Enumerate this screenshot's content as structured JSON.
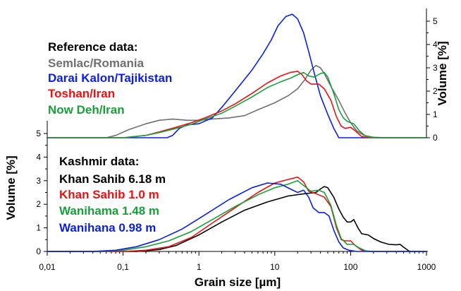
{
  "chart_data": [
    {
      "type": "line",
      "panel": "top",
      "ylabel": "Volume [%]",
      "y_axis_side": "right",
      "ylim": [
        0,
        5
      ],
      "yticks": [
        "0",
        "1",
        "2",
        "3",
        "4",
        "5"
      ],
      "x_scale": "log",
      "xlim": [
        0.01,
        1000
      ],
      "legend": {
        "title": "Reference data:",
        "placement": "top-left",
        "entries": [
          "Semlac/Romania",
          "Darai Kalon/Tajikistan",
          "Toshan/Iran",
          "Now Deh/Iran"
        ]
      },
      "series": [
        {
          "name": "Semlac/Romania",
          "color": "#707070",
          "points": [
            [
              0.06,
              0
            ],
            [
              0.08,
              0.1
            ],
            [
              0.12,
              0.35
            ],
            [
              0.2,
              0.6
            ],
            [
              0.3,
              0.75
            ],
            [
              0.45,
              0.8
            ],
            [
              0.7,
              0.75
            ],
            [
              1.0,
              0.75
            ],
            [
              1.5,
              0.8
            ],
            [
              2.5,
              0.85
            ],
            [
              4,
              0.95
            ],
            [
              6,
              1.2
            ],
            [
              10,
              1.5
            ],
            [
              15,
              1.8
            ],
            [
              20,
              2.1
            ],
            [
              25,
              2.5
            ],
            [
              30,
              2.9
            ],
            [
              35,
              3.1
            ],
            [
              40,
              3.0
            ],
            [
              45,
              2.75
            ],
            [
              55,
              2.2
            ],
            [
              70,
              1.6
            ],
            [
              85,
              1.05
            ],
            [
              100,
              0.65
            ],
            [
              120,
              0.3
            ],
            [
              150,
              0.1
            ],
            [
              200,
              0.02
            ],
            [
              300,
              0
            ]
          ]
        },
        {
          "name": "Darai Kalon/Tajikistan",
          "color": "#0a1ee6",
          "points": [
            [
              0.38,
              0
            ],
            [
              0.45,
              0.1
            ],
            [
              0.55,
              0.4
            ],
            [
              0.7,
              0.55
            ],
            [
              1.0,
              0.6
            ],
            [
              1.5,
              0.85
            ],
            [
              2,
              1.3
            ],
            [
              3,
              2.0
            ],
            [
              5,
              2.9
            ],
            [
              7,
              3.6
            ],
            [
              9,
              4.2
            ],
            [
              11,
              4.8
            ],
            [
              14,
              5.2
            ],
            [
              17,
              5.3
            ],
            [
              20,
              5.1
            ],
            [
              24,
              4.5
            ],
            [
              28,
              3.7
            ],
            [
              33,
              2.8
            ],
            [
              40,
              1.8
            ],
            [
              50,
              1.0
            ],
            [
              60,
              0.4
            ],
            [
              70,
              0
            ]
          ]
        },
        {
          "name": "Toshan/Iran",
          "color": "#ee1010",
          "points": [
            [
              0.1,
              0
            ],
            [
              0.2,
              0.1
            ],
            [
              0.3,
              0.25
            ],
            [
              0.5,
              0.45
            ],
            [
              0.8,
              0.65
            ],
            [
              1.2,
              0.85
            ],
            [
              2,
              1.15
            ],
            [
              3,
              1.45
            ],
            [
              5,
              1.9
            ],
            [
              8,
              2.35
            ],
            [
              12,
              2.65
            ],
            [
              16,
              2.8
            ],
            [
              20,
              2.85
            ],
            [
              23,
              2.7
            ],
            [
              26,
              2.45
            ],
            [
              30,
              2.3
            ],
            [
              38,
              2.3
            ],
            [
              45,
              2.1
            ],
            [
              55,
              1.6
            ],
            [
              65,
              0.9
            ],
            [
              75,
              0.5
            ],
            [
              85,
              0.4
            ],
            [
              100,
              0.45
            ],
            [
              115,
              0.3
            ],
            [
              140,
              0.05
            ],
            [
              170,
              0
            ]
          ]
        },
        {
          "name": "Now Deh/Iran",
          "color": "#18a03a",
          "points": [
            [
              0.1,
              0
            ],
            [
              0.2,
              0.1
            ],
            [
              0.3,
              0.22
            ],
            [
              0.5,
              0.4
            ],
            [
              0.8,
              0.58
            ],
            [
              1.2,
              0.8
            ],
            [
              2,
              1.05
            ],
            [
              3,
              1.35
            ],
            [
              5,
              1.75
            ],
            [
              8,
              2.15
            ],
            [
              12,
              2.4
            ],
            [
              16,
              2.55
            ],
            [
              20,
              2.7
            ],
            [
              24,
              2.8
            ],
            [
              28,
              2.65
            ],
            [
              33,
              2.6
            ],
            [
              40,
              2.75
            ],
            [
              45,
              2.8
            ],
            [
              50,
              2.6
            ],
            [
              60,
              1.9
            ],
            [
              70,
              1.2
            ],
            [
              80,
              0.85
            ],
            [
              90,
              0.7
            ],
            [
              110,
              0.6
            ],
            [
              130,
              0.3
            ],
            [
              160,
              0.05
            ],
            [
              200,
              0
            ]
          ]
        }
      ]
    },
    {
      "type": "line",
      "panel": "bottom",
      "xlabel": "Grain size [µm]",
      "ylabel": "Volume [%]",
      "ylim": [
        0,
        5
      ],
      "yticks": [
        "0",
        "1",
        "2",
        "3",
        "4",
        "5"
      ],
      "x_scale": "log",
      "xlim": [
        0.01,
        1000
      ],
      "xticks": [
        "0,01",
        "0,1",
        "1",
        "10",
        "100",
        "1000"
      ],
      "legend": {
        "title": "Kashmir data:",
        "placement": "left",
        "entries": [
          "Khan Sahib 6.18 m",
          "Khan Sahib 1.0 m",
          "Wanihama 1.48 m",
          "Wanihana 0.98 m"
        ]
      },
      "series": [
        {
          "name": "Khan Sahib 6.18 m",
          "color": "#000000",
          "points": [
            [
              0.15,
              0
            ],
            [
              0.3,
              0.08
            ],
            [
              0.5,
              0.25
            ],
            [
              1,
              0.7
            ],
            [
              2,
              1.25
            ],
            [
              4,
              1.75
            ],
            [
              8,
              2.1
            ],
            [
              15,
              2.35
            ],
            [
              25,
              2.45
            ],
            [
              35,
              2.5
            ],
            [
              40,
              2.65
            ],
            [
              45,
              2.75
            ],
            [
              50,
              2.7
            ],
            [
              60,
              2.3
            ],
            [
              70,
              1.8
            ],
            [
              80,
              1.45
            ],
            [
              90,
              1.25
            ],
            [
              100,
              1.25
            ],
            [
              110,
              1.35
            ],
            [
              125,
              1.0
            ],
            [
              140,
              0.75
            ],
            [
              170,
              0.7
            ],
            [
              200,
              0.55
            ],
            [
              250,
              0.4
            ],
            [
              320,
              0.3
            ],
            [
              400,
              0.28
            ],
            [
              450,
              0.3
            ],
            [
              500,
              0.18
            ],
            [
              600,
              0
            ]
          ]
        },
        {
          "name": "Khan Sahib 1.0 m",
          "color": "#ee1010",
          "points": [
            [
              0.1,
              0
            ],
            [
              0.2,
              0.05
            ],
            [
              0.4,
              0.2
            ],
            [
              0.8,
              0.6
            ],
            [
              1.5,
              1.2
            ],
            [
              3,
              1.85
            ],
            [
              6,
              2.5
            ],
            [
              10,
              2.9
            ],
            [
              15,
              3.05
            ],
            [
              20,
              3.15
            ],
            [
              24,
              2.95
            ],
            [
              28,
              2.55
            ],
            [
              35,
              2.45
            ],
            [
              45,
              2.3
            ],
            [
              55,
              1.9
            ],
            [
              65,
              1.0
            ],
            [
              75,
              0.5
            ],
            [
              85,
              0.45
            ],
            [
              100,
              0.45
            ],
            [
              115,
              0.25
            ],
            [
              140,
              0.05
            ],
            [
              170,
              0
            ]
          ]
        },
        {
          "name": "Wanihama 1.48 m",
          "color": "#18a03a",
          "points": [
            [
              0.05,
              0
            ],
            [
              0.1,
              0.05
            ],
            [
              0.2,
              0.2
            ],
            [
              0.4,
              0.45
            ],
            [
              0.8,
              0.85
            ],
            [
              1.5,
              1.35
            ],
            [
              3,
              1.9
            ],
            [
              6,
              2.4
            ],
            [
              10,
              2.7
            ],
            [
              15,
              2.85
            ],
            [
              20,
              3.0
            ],
            [
              25,
              2.75
            ],
            [
              30,
              2.55
            ],
            [
              38,
              2.6
            ],
            [
              45,
              2.5
            ],
            [
              55,
              1.95
            ],
            [
              65,
              1.1
            ],
            [
              75,
              0.55
            ],
            [
              90,
              0.3
            ],
            [
              110,
              0.3
            ],
            [
              130,
              0.15
            ],
            [
              160,
              0.02
            ],
            [
              200,
              0
            ]
          ]
        },
        {
          "name": "Wanihana 0.98 m",
          "color": "#0a1ee6",
          "points": [
            [
              0.04,
              0
            ],
            [
              0.08,
              0.05
            ],
            [
              0.15,
              0.2
            ],
            [
              0.3,
              0.5
            ],
            [
              0.6,
              0.95
            ],
            [
              1.2,
              1.55
            ],
            [
              2.5,
              2.2
            ],
            [
              5,
              2.7
            ],
            [
              8,
              2.9
            ],
            [
              12,
              2.85
            ],
            [
              16,
              2.65
            ],
            [
              20,
              2.5
            ],
            [
              24,
              2.6
            ],
            [
              28,
              2.3
            ],
            [
              32,
              1.85
            ],
            [
              38,
              1.65
            ],
            [
              45,
              1.65
            ],
            [
              52,
              1.5
            ],
            [
              60,
              0.9
            ],
            [
              70,
              0.4
            ],
            [
              80,
              0.15
            ],
            [
              95,
              0.05
            ],
            [
              120,
              0
            ]
          ]
        }
      ]
    }
  ]
}
